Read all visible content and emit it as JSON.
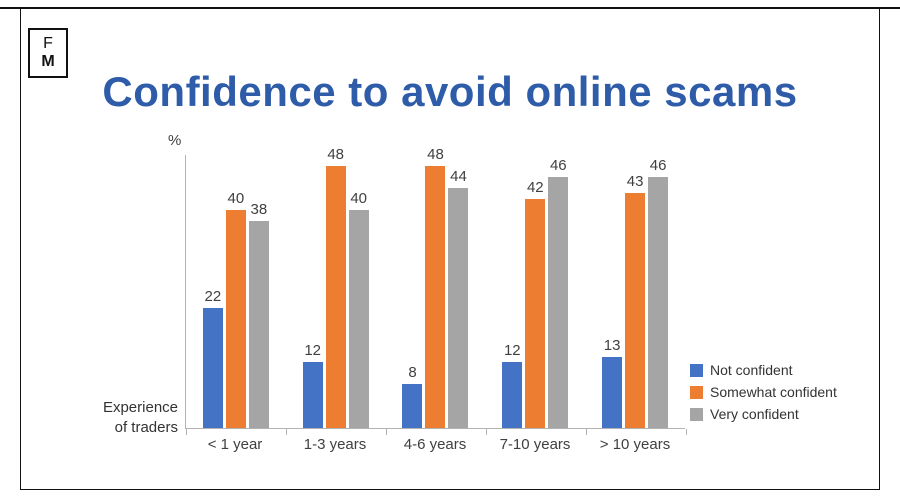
{
  "logo": {
    "line1": "F",
    "line2": "M"
  },
  "title": "Confidence to avoid online scams",
  "axis": {
    "percent_label": "%",
    "xlabel_line1": "Experience",
    "xlabel_line2": "of traders"
  },
  "chart_data": {
    "type": "bar",
    "title": "Confidence to avoid online scams",
    "categories": [
      "< 1 year",
      "1-3 years",
      "4-6 years",
      "7-10 years",
      "> 10 years"
    ],
    "series": [
      {
        "name": "Not confident",
        "color": "#4472c4",
        "values": [
          22,
          12,
          8,
          12,
          13
        ]
      },
      {
        "name": "Somewhat confident",
        "color": "#ed7d31",
        "values": [
          40,
          48,
          48,
          42,
          43
        ]
      },
      {
        "name": "Very confident",
        "color": "#a5a5a5",
        "values": [
          38,
          40,
          44,
          46,
          46
        ]
      }
    ],
    "ylabel": "%",
    "xlabel": "Experience of traders",
    "ylim": [
      0,
      50
    ],
    "grid": false,
    "legend_position": "right"
  }
}
